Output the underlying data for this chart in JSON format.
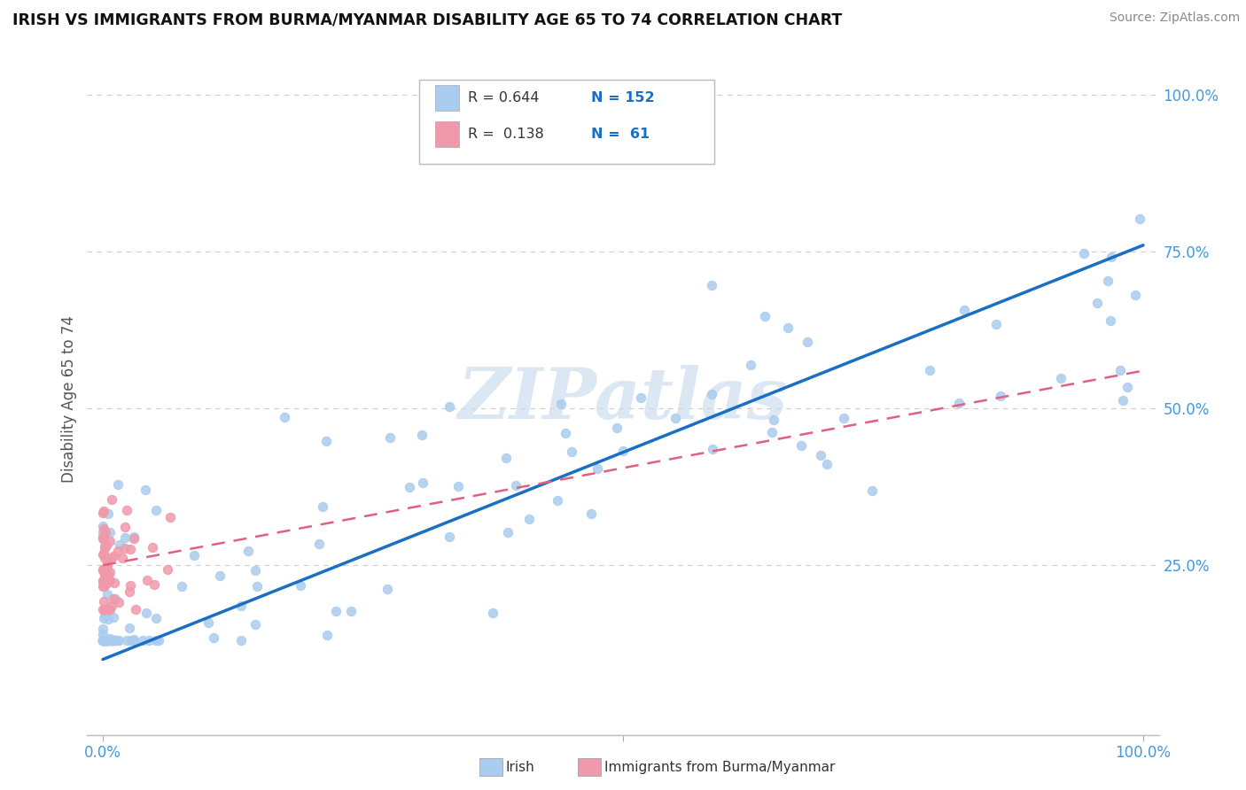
{
  "title": "IRISH VS IMMIGRANTS FROM BURMA/MYANMAR DISABILITY AGE 65 TO 74 CORRELATION CHART",
  "source": "Source: ZipAtlas.com",
  "ylabel": "Disability Age 65 to 74",
  "r_irish": "0.644",
  "n_irish": "152",
  "r_burma": "0.138",
  "n_burma": "61",
  "irish_color": "#aaccee",
  "burma_color": "#f099aa",
  "irish_line_color": "#1a6fc4",
  "burma_line_color": "#e06080",
  "axis_label_color": "#4499dd",
  "legend_r_color": "#1a6fc4",
  "grid_color": "#cccccc",
  "background_color": "#ffffff",
  "legend_irish": "Irish",
  "legend_burma": "Immigrants from Burma/Myanmar",
  "watermark_color": "#ccdded",
  "irish_line_x0": 0.0,
  "irish_line_y0": 0.1,
  "irish_line_x1": 1.0,
  "irish_line_y1": 0.76,
  "burma_line_x0": 0.0,
  "burma_line_y0": 0.25,
  "burma_line_x1": 1.0,
  "burma_line_y1": 0.56,
  "xmin": 0.0,
  "xmax": 1.0,
  "ymin": 0.0,
  "ymax": 1.05
}
